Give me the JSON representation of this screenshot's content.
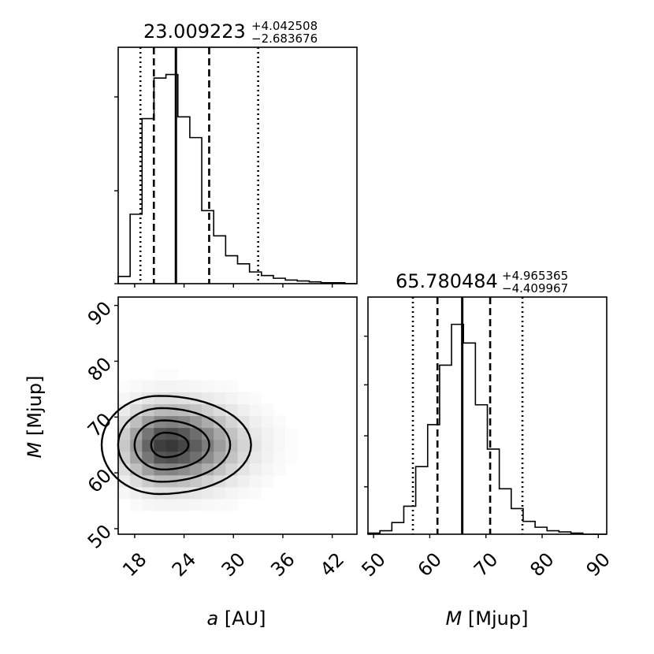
{
  "chart_data": {
    "type": "corner",
    "parameters": [
      {
        "name": "a",
        "unit": "[AU]",
        "label_italic": "a",
        "label_rest": " [AU]",
        "ticks": [
          "18",
          "24",
          "30",
          "36",
          "42"
        ],
        "range": [
          16.0,
          45.0
        ],
        "median": 23.009223,
        "upper_err": 4.042508,
        "lower_err": 2.683676,
        "title_main": "23.009223",
        "title_sup": "+4.042508",
        "title_sub": "−2.683676",
        "quantile_lines": [
          18.7,
          20.33,
          23.01,
          27.05,
          33.0
        ],
        "histogram": {
          "bin_edges": [
            16.0,
            17.45,
            18.9,
            20.35,
            21.8,
            23.25,
            24.7,
            26.15,
            27.6,
            29.05,
            30.5,
            31.95,
            33.4,
            34.85,
            36.3,
            37.75,
            39.2,
            40.65,
            42.1,
            43.55,
            45.0
          ],
          "counts": [
            8,
            77,
            183,
            228,
            232,
            185,
            162,
            81,
            53,
            31,
            22,
            13,
            9,
            6,
            4,
            3,
            2,
            1,
            1,
            0
          ]
        }
      },
      {
        "name": "M",
        "unit": "[Mjup]",
        "label_italic": "M",
        "label_rest": " [Mjup]",
        "ticks": [
          "50",
          "60",
          "70",
          "80",
          "90"
        ],
        "range": [
          49.0,
          91.5
        ],
        "median": 65.780484,
        "upper_err": 4.965365,
        "lower_err": 4.409967,
        "title_main": "65.780484",
        "title_sup": "+4.965365",
        "title_sub": "−4.409967",
        "quantile_lines": [
          57.0,
          61.37,
          65.78,
          70.75,
          76.5
        ],
        "histogram": {
          "bin_edges": [
            49.0,
            51.125,
            53.25,
            55.375,
            57.5,
            59.625,
            61.75,
            63.875,
            66.0,
            68.125,
            70.25,
            72.375,
            74.5,
            76.625,
            78.75,
            80.875,
            83.0,
            85.125,
            87.25,
            89.375,
            91.5
          ],
          "counts": [
            1,
            3,
            10,
            24,
            58,
            94,
            145,
            180,
            164,
            111,
            73,
            39,
            22,
            11,
            6,
            3,
            2,
            1,
            0,
            0
          ]
        }
      }
    ],
    "joint": {
      "x_param": "a",
      "y_param": "M",
      "density_center": [
        22.0,
        65.0
      ],
      "contour_levels_sigma": [
        0.5,
        1.0,
        1.5,
        2.0
      ]
    }
  }
}
